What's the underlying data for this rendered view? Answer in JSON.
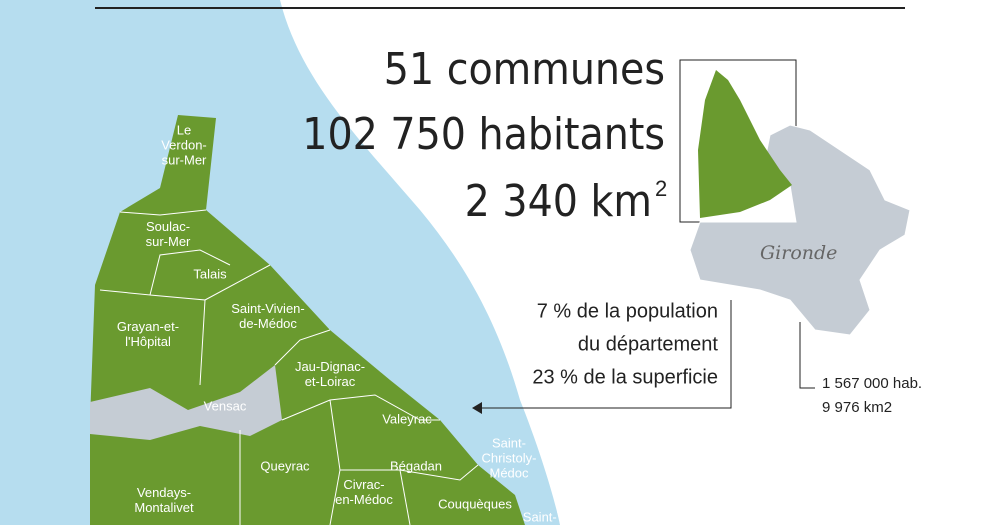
{
  "stats": {
    "communes": "51 communes",
    "habitants": "102 750 habitants",
    "area": "2 340 km",
    "area_exponent": "2"
  },
  "communes": [
    {
      "lines": [
        "Le",
        "Verdon-",
        "sur-Mer"
      ]
    },
    {
      "lines": [
        "Soulac-",
        "sur-Mer"
      ]
    },
    {
      "lines": [
        "Talais"
      ]
    },
    {
      "lines": [
        "Saint-Vivien-",
        "de-Médoc"
      ]
    },
    {
      "lines": [
        "Grayan-et-",
        "l'Hôpital"
      ]
    },
    {
      "lines": [
        "Jau-Dignac-",
        "et-Loirac"
      ]
    },
    {
      "lines": [
        "Vensac"
      ]
    },
    {
      "lines": [
        "Valeyrac"
      ]
    },
    {
      "lines": [
        "Queyrac"
      ]
    },
    {
      "lines": [
        "Bégadan"
      ]
    },
    {
      "lines": [
        "Saint-",
        "Christoly-",
        "Médoc"
      ]
    },
    {
      "lines": [
        "Civrac-",
        "en-Médoc"
      ]
    },
    {
      "lines": [
        "Couquèques"
      ]
    },
    {
      "lines": [
        "Vendays-",
        "Montalivet"
      ]
    },
    {
      "lines": [
        "Saint-Yzans-"
      ]
    }
  ],
  "callout": {
    "lines": [
      "7 % de la population",
      "du département",
      "23 % de la superficie"
    ]
  },
  "gironde": {
    "name": "Gironde",
    "population": "1 567 000 hab.",
    "area": "9 976 km2"
  }
}
